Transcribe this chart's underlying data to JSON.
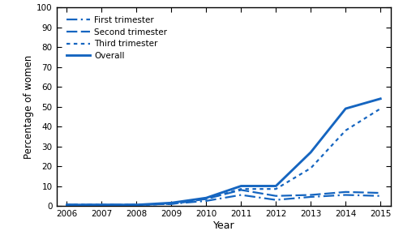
{
  "years": [
    2006,
    2007,
    2008,
    2009,
    2010,
    2011,
    2012,
    2013,
    2014,
    2015
  ],
  "overall": [
    0.5,
    0.5,
    0.5,
    1.5,
    4.0,
    10.0,
    10.0,
    27.0,
    49.0,
    54.0
  ],
  "first_trimester": [
    0.5,
    0.5,
    0.5,
    1.0,
    2.5,
    5.5,
    3.0,
    4.5,
    5.5,
    5.0
  ],
  "second_trimester": [
    0.5,
    0.5,
    0.5,
    1.0,
    3.5,
    8.0,
    5.0,
    5.5,
    7.0,
    6.5
  ],
  "third_trimester": [
    0.5,
    0.5,
    0.5,
    1.0,
    3.5,
    8.5,
    8.5,
    19.0,
    38.0,
    49.0
  ],
  "color": "#1565c0",
  "xlabel": "Year",
  "ylabel": "Percentage of women",
  "ylim": [
    0,
    100
  ],
  "xlim": [
    2006,
    2015
  ],
  "yticks": [
    0,
    10,
    20,
    30,
    40,
    50,
    60,
    70,
    80,
    90,
    100
  ],
  "xticks": [
    2006,
    2007,
    2008,
    2009,
    2010,
    2011,
    2012,
    2013,
    2014,
    2015
  ],
  "legend_labels": [
    "First trimester",
    "Second trimester",
    "Third trimester",
    "Overall"
  ],
  "background_color": "#ffffff"
}
